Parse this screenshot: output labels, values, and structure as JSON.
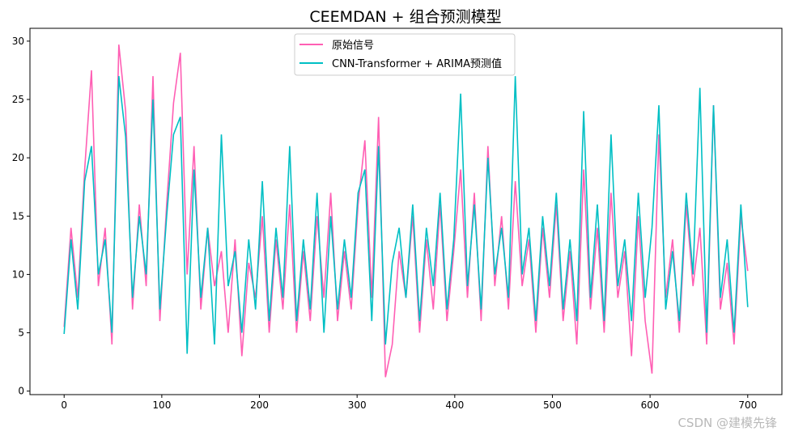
{
  "chart_data": {
    "type": "line",
    "title": "CEEMDAN + 组合预测模型",
    "xlabel": "",
    "ylabel": "",
    "xlim": [
      -35,
      735
    ],
    "ylim": [
      -0.3,
      31.1
    ],
    "xticks": [
      0,
      100,
      200,
      300,
      400,
      500,
      600,
      700
    ],
    "yticks": [
      0,
      5,
      10,
      15,
      20,
      25,
      30
    ],
    "grid": false,
    "legend_position": "top-center",
    "x": [
      0,
      7,
      14,
      21,
      28,
      35,
      42,
      49,
      56,
      63,
      70,
      77,
      84,
      91,
      98,
      105,
      112,
      119,
      126,
      133,
      140,
      147,
      154,
      161,
      168,
      175,
      182,
      189,
      196,
      203,
      210,
      217,
      224,
      231,
      238,
      245,
      252,
      259,
      266,
      273,
      280,
      287,
      294,
      301,
      308,
      315,
      322,
      329,
      336,
      343,
      350,
      357,
      364,
      371,
      378,
      385,
      392,
      399,
      406,
      413,
      420,
      427,
      434,
      441,
      448,
      455,
      462,
      469,
      476,
      483,
      490,
      497,
      504,
      511,
      518,
      525,
      532,
      539,
      546,
      553,
      560,
      567,
      574,
      581,
      588,
      595,
      602,
      609,
      616,
      623,
      630,
      637,
      644,
      651,
      658,
      665,
      672,
      679,
      686,
      693,
      700
    ],
    "series": [
      {
        "name": "原始信号",
        "color": "#ff5fb4",
        "values": [
          5.5,
          14,
          8,
          19,
          27.5,
          9,
          14,
          4,
          29.7,
          24,
          7,
          16,
          9,
          27,
          6,
          16,
          24.7,
          29,
          10,
          21,
          7,
          14,
          9,
          12,
          5,
          13,
          3,
          11,
          8,
          15,
          5,
          13,
          7,
          16,
          5,
          12,
          6,
          15,
          8,
          17,
          6,
          12,
          7,
          16,
          21.5,
          8,
          23.5,
          1.2,
          4,
          12,
          8,
          15,
          5,
          13,
          7,
          16,
          6,
          12,
          19,
          8,
          17,
          6,
          21,
          9,
          15,
          7,
          18,
          9,
          13,
          5,
          14,
          8,
          16,
          6,
          12,
          4,
          19,
          7,
          14,
          5,
          17,
          8,
          12,
          3,
          15,
          6,
          1.5,
          22,
          8,
          13,
          5,
          16,
          9,
          14,
          4,
          24.5,
          7,
          11,
          4,
          15,
          10.3
        ]
      },
      {
        "name": "CNN-Transformer + ARIMA预测值",
        "color": "#00bfc4",
        "values": [
          4.9,
          13,
          7,
          18,
          21,
          10,
          13,
          5,
          27,
          21.8,
          8,
          15,
          10,
          25,
          7,
          15,
          22,
          23.5,
          3.2,
          19,
          8,
          14,
          4,
          22,
          9,
          12,
          5,
          13,
          7,
          18,
          6,
          14,
          8,
          21,
          6,
          13,
          7,
          17,
          5,
          15,
          7,
          13,
          8,
          17,
          19,
          6,
          21,
          4,
          11,
          14,
          8,
          16,
          6,
          14,
          9,
          17,
          7,
          13,
          25.5,
          9,
          16,
          7,
          20,
          10,
          14,
          8,
          27,
          10,
          14,
          6,
          15,
          9,
          17,
          7,
          13,
          6,
          24,
          8,
          16,
          6,
          22,
          9,
          13,
          6,
          17,
          8,
          14,
          24.5,
          7,
          12,
          6,
          17,
          10,
          26,
          5,
          24.5,
          8,
          13,
          5,
          16,
          7.2
        ]
      }
    ]
  },
  "watermark": "CSDN @建模先锋"
}
